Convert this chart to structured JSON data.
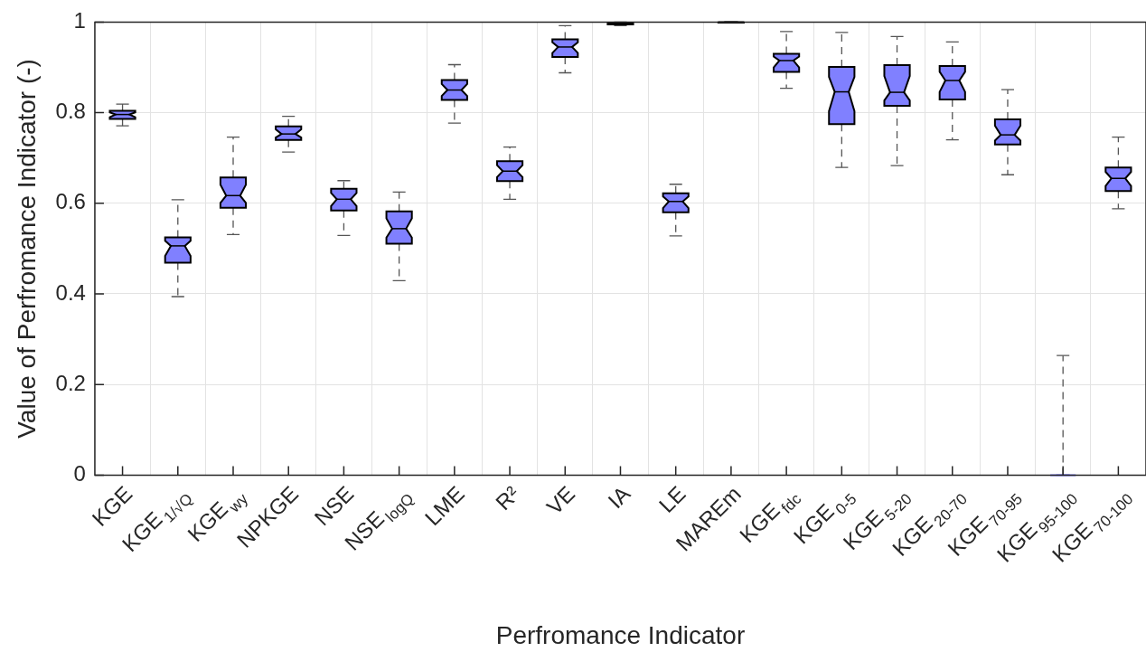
{
  "chart_data": {
    "type": "box",
    "xlabel": "Perfromance Indicator",
    "ylabel": "Value of Perfromance Indicator (-)",
    "categories": [
      "KGE",
      "KGE$_{1/√Q}$",
      "KGE$_{wy}$",
      "NPKGE",
      "NSE",
      "NSE$_{logQ}$",
      "LME",
      "R²",
      "VE",
      "IA",
      "LE",
      "MAREm",
      "KGE$_{fdc}$",
      "KGE$_{0-5}$",
      "KGE$_{5-20}$",
      "KGE$_{20-70}$",
      "KGE$_{70-95}$",
      "KGE$_{95-100}$",
      "KGE$_{70-100}$"
    ],
    "color": "#8080ff",
    "boxes": [
      {
        "low": 0.771,
        "q1": 0.786,
        "median": 0.796,
        "q3": 0.804,
        "high": 0.819
      },
      {
        "low": 0.394,
        "q1": 0.469,
        "median": 0.506,
        "q3": 0.525,
        "high": 0.608
      },
      {
        "low": 0.531,
        "q1": 0.59,
        "median": 0.617,
        "q3": 0.657,
        "high": 0.746
      },
      {
        "low": 0.713,
        "q1": 0.74,
        "median": 0.753,
        "q3": 0.77,
        "high": 0.792
      },
      {
        "low": 0.529,
        "q1": 0.584,
        "median": 0.609,
        "q3": 0.632,
        "high": 0.65
      },
      {
        "low": 0.429,
        "q1": 0.511,
        "median": 0.544,
        "q3": 0.582,
        "high": 0.625
      },
      {
        "low": 0.777,
        "q1": 0.828,
        "median": 0.85,
        "q3": 0.872,
        "high": 0.906
      },
      {
        "low": 0.609,
        "q1": 0.649,
        "median": 0.671,
        "q3": 0.693,
        "high": 0.724
      },
      {
        "low": 0.888,
        "q1": 0.923,
        "median": 0.945,
        "q3": 0.962,
        "high": 0.992
      },
      {
        "low": 0.992,
        "q1": 0.995,
        "median": 0.997,
        "q3": 0.999,
        "high": 1
      },
      {
        "low": 0.528,
        "q1": 0.58,
        "median": 0.604,
        "q3": 0.622,
        "high": 0.642
      },
      {
        "low": 0.998,
        "q1": 0.999,
        "median": 1,
        "q3": 1,
        "high": 1
      },
      {
        "low": 0.854,
        "q1": 0.89,
        "median": 0.915,
        "q3": 0.93,
        "high": 0.979
      },
      {
        "low": 0.679,
        "q1": 0.775,
        "median": 0.846,
        "q3": 0.901,
        "high": 0.977
      },
      {
        "low": 0.683,
        "q1": 0.815,
        "median": 0.845,
        "q3": 0.905,
        "high": 0.968
      },
      {
        "low": 0.74,
        "q1": 0.829,
        "median": 0.871,
        "q3": 0.903,
        "high": 0.956
      },
      {
        "low": 0.663,
        "q1": 0.73,
        "median": 0.751,
        "q3": 0.785,
        "high": 0.851
      },
      {
        "low": 0,
        "q1": 0,
        "median": 0,
        "q3": 0,
        "high": 0.264
      },
      {
        "low": 0.588,
        "q1": 0.627,
        "median": 0.655,
        "q3": 0.679,
        "high": 0.746
      }
    ],
    "ylim": [
      0,
      1
    ],
    "yticks": [
      0,
      0.2,
      0.4,
      0.6,
      0.8,
      1
    ],
    "grid": true
  }
}
